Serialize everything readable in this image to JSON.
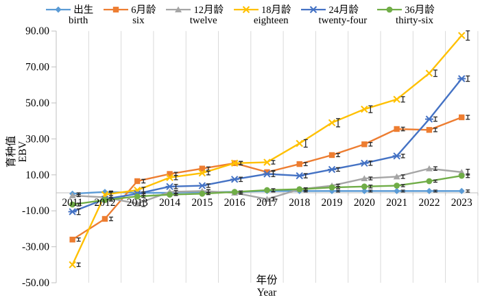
{
  "figure": {
    "background": "#ffffff"
  },
  "axes": {
    "x": {
      "title_zh": "年份",
      "title_en": "Year"
    },
    "y": {
      "title_zh": "育种值",
      "title_en": "EBV",
      "min": -50,
      "max": 90,
      "step": 20,
      "tick_labels": [
        "90.00",
        "70.00",
        "50.00",
        "30.00",
        "10.00",
        "-10.00",
        "-30.00",
        "-50.00"
      ]
    }
  },
  "colors": {
    "grid": "#D9D9D9",
    "axis": "#BFBFBF",
    "error_bar": "#262626",
    "text": "#000000"
  },
  "chart_data": {
    "type": "line",
    "title": "",
    "xlabel": "年份 Year",
    "ylabel": "育种值 EBV",
    "ylim": [
      -50,
      90
    ],
    "grid": "vertical-only",
    "legend_position": "top",
    "categories": [
      "2011",
      "2012",
      "2013",
      "2014",
      "2015",
      "2016",
      "2017",
      "2018",
      "2019",
      "2020",
      "2021",
      "2022",
      "2023"
    ],
    "series": [
      {
        "key": "birth",
        "name_zh": "出生",
        "name_en": "birth",
        "color": "#5B9BD5",
        "marker": "diamond",
        "values": [
          -0.5,
          0.5,
          0,
          0,
          0.5,
          0.5,
          1,
          1,
          1,
          1,
          1,
          1,
          1
        ],
        "errors": [
          0.5,
          0.5,
          0.5,
          0.5,
          0.5,
          0.5,
          0.5,
          0.5,
          0.5,
          0.5,
          0.5,
          0.5,
          0.6
        ]
      },
      {
        "key": "six",
        "name_zh": "6月龄",
        "name_en": "six",
        "color": "#ED7D31",
        "marker": "square",
        "values": [
          -26,
          -14.5,
          6.5,
          10.5,
          13.5,
          16.5,
          11.5,
          16,
          21,
          27,
          35.5,
          35,
          42
        ],
        "errors": [
          0.9,
          1,
          1,
          0.9,
          0.9,
          0.9,
          0.9,
          0.9,
          0.9,
          1,
          1,
          1,
          1.1
        ]
      },
      {
        "key": "twelve",
        "name_zh": "12月龄",
        "name_en": "twelve",
        "color": "#A5A5A5",
        "marker": "triangle",
        "values": [
          -1.5,
          -2.5,
          -6,
          0.5,
          1,
          0,
          -3.5,
          2,
          4,
          8,
          9,
          13.5,
          11.5
        ],
        "errors": [
          0.6,
          1,
          1.6,
          0.8,
          0.8,
          0.8,
          1,
          0.8,
          0.8,
          0.8,
          1,
          1,
          1.6
        ]
      },
      {
        "key": "eighteen",
        "name_zh": "18月龄",
        "name_en": "eighteen",
        "color": "#FFC000",
        "marker": "x",
        "values": [
          -40,
          -1,
          1.5,
          8.5,
          11,
          16.5,
          17,
          27.5,
          39,
          46.5,
          52,
          66.5,
          87.5
        ],
        "errors": [
          1,
          1.6,
          1.6,
          1.2,
          1,
          1,
          1,
          2.1,
          2.3,
          1.9,
          1.5,
          1.8,
          2.6
        ]
      },
      {
        "key": "twenty-four",
        "name_zh": "24月龄",
        "name_en": "twenty-four",
        "color": "#4472C4",
        "marker": "asterisk",
        "values": [
          -10.5,
          -3.5,
          -0.5,
          3.5,
          4,
          7.5,
          10.5,
          9.5,
          13,
          16.5,
          20.5,
          41,
          63.5
        ],
        "errors": [
          1.6,
          1,
          1,
          1.2,
          1,
          1.2,
          1.5,
          1.2,
          1,
          1.2,
          1,
          1.2,
          1.5
        ]
      },
      {
        "key": "thirty-six",
        "name_zh": "36月龄",
        "name_en": "thirty-six",
        "color": "#70AD47",
        "marker": "circle",
        "values": [
          -6.5,
          -4,
          -2,
          -1,
          -0.5,
          0.5,
          1.5,
          2,
          3,
          3.5,
          4,
          6.5,
          9.5
        ],
        "errors": [
          0.8,
          0.6,
          0.6,
          0.5,
          0.5,
          0.5,
          0.8,
          0.6,
          0.6,
          0.8,
          0.6,
          0.6,
          1
        ]
      }
    ]
  }
}
